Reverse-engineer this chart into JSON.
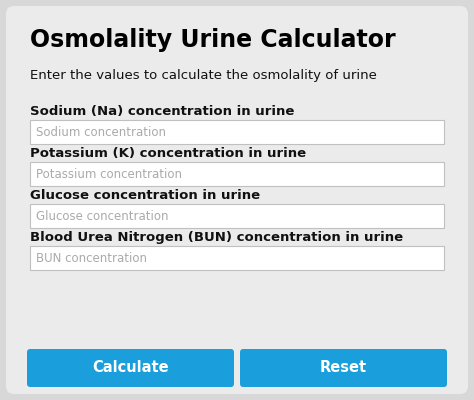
{
  "title": "Osmolality Urine Calculator",
  "subtitle": "Enter the values to calculate the osmolality of urine",
  "fields": [
    {
      "label": "Sodium (Na) concentration in urine",
      "placeholder": "Sodium concentration"
    },
    {
      "label": "Potassium (K) concentration in urine",
      "placeholder": "Potassium concentration"
    },
    {
      "label": "Glucose concentration in urine",
      "placeholder": "Glucose concentration"
    },
    {
      "label": "Blood Urea Nitrogen (BUN) concentration in urine",
      "placeholder": "BUN concentration"
    }
  ],
  "buttons": [
    "Calculate",
    "Reset"
  ],
  "bg_color": "#d8d8d8",
  "card_color": "#ebebeb",
  "input_bg": "#ffffff",
  "input_border": "#c0c0c0",
  "button_color": "#1a9fdc",
  "button_text_color": "#ffffff",
  "title_color": "#000000",
  "label_color": "#111111",
  "placeholder_color": "#aaaaaa",
  "subtitle_color": "#111111",
  "title_fontsize": 17,
  "subtitle_fontsize": 9.5,
  "label_fontsize": 9.5,
  "placeholder_fontsize": 8.5,
  "button_fontsize": 10.5
}
